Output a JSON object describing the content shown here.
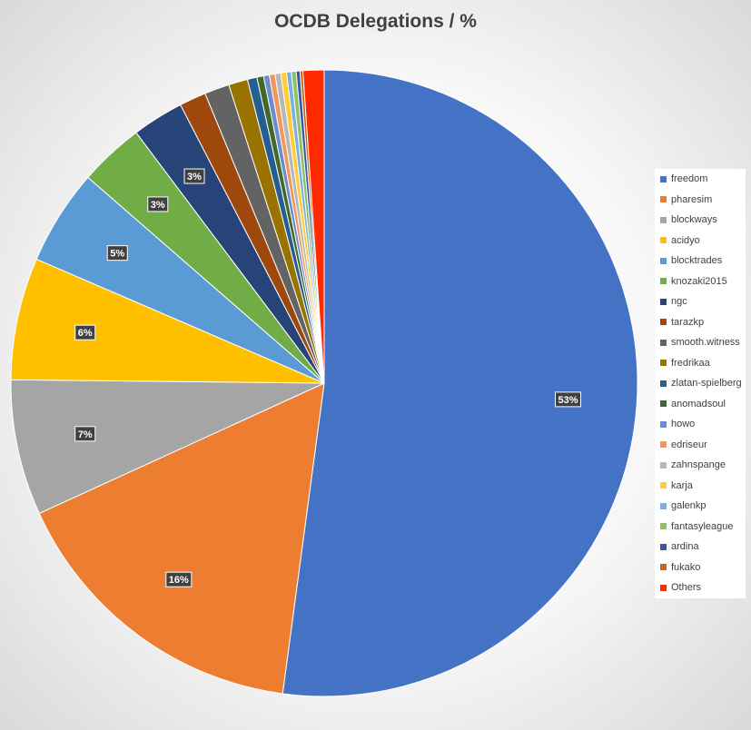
{
  "chart_data": {
    "type": "pie",
    "title": "OCDB Delegations / %",
    "legend_position": "right",
    "slices": [
      {
        "label": "freedom",
        "value": 52.9,
        "color": "#4472C4",
        "data_label": "53%"
      },
      {
        "label": "pharesim",
        "value": 16.3,
        "color": "#ED7D31",
        "data_label": "16%"
      },
      {
        "label": "blockways",
        "value": 7.1,
        "color": "#A5A5A5",
        "data_label": "7%"
      },
      {
        "label": "acidyo",
        "value": 6.4,
        "color": "#FFC000",
        "data_label": "6%"
      },
      {
        "label": "blocktrades",
        "value": 5.0,
        "color": "#5B9BD5",
        "data_label": "5%"
      },
      {
        "label": "knozaki2015",
        "value": 3.4,
        "color": "#70AD47",
        "data_label": "3%"
      },
      {
        "label": "ngc",
        "value": 2.7,
        "color": "#264478",
        "data_label": "3%"
      },
      {
        "label": "tarazkp",
        "value": 1.4,
        "color": "#9E480E",
        "data_label": ""
      },
      {
        "label": "smooth.witness",
        "value": 1.3,
        "color": "#636363",
        "data_label": ""
      },
      {
        "label": "fredrikaa",
        "value": 1.0,
        "color": "#997300",
        "data_label": ""
      },
      {
        "label": "zlatan-spielberg",
        "value": 0.5,
        "color": "#255E91",
        "data_label": ""
      },
      {
        "label": "anomadsoul",
        "value": 0.35,
        "color": "#43682B",
        "data_label": ""
      },
      {
        "label": "howo",
        "value": 0.3,
        "color": "#698ED0",
        "data_label": ""
      },
      {
        "label": "edriseur",
        "value": 0.3,
        "color": "#F1975A",
        "data_label": ""
      },
      {
        "label": "zahnspange",
        "value": 0.3,
        "color": "#B7B7B7",
        "data_label": ""
      },
      {
        "label": "karja",
        "value": 0.3,
        "color": "#FFCD33",
        "data_label": ""
      },
      {
        "label": "galenkp",
        "value": 0.25,
        "color": "#7CAFDD",
        "data_label": ""
      },
      {
        "label": "fantasyleague",
        "value": 0.25,
        "color": "#8CC168",
        "data_label": ""
      },
      {
        "label": "ardina",
        "value": 0.2,
        "color": "#335AA1",
        "data_label": ""
      },
      {
        "label": "fukako",
        "value": 0.15,
        "color": "#D26012",
        "data_label": ""
      },
      {
        "label": "Others",
        "value": 1.1,
        "color": "#FF2A00",
        "data_label": ""
      }
    ]
  }
}
